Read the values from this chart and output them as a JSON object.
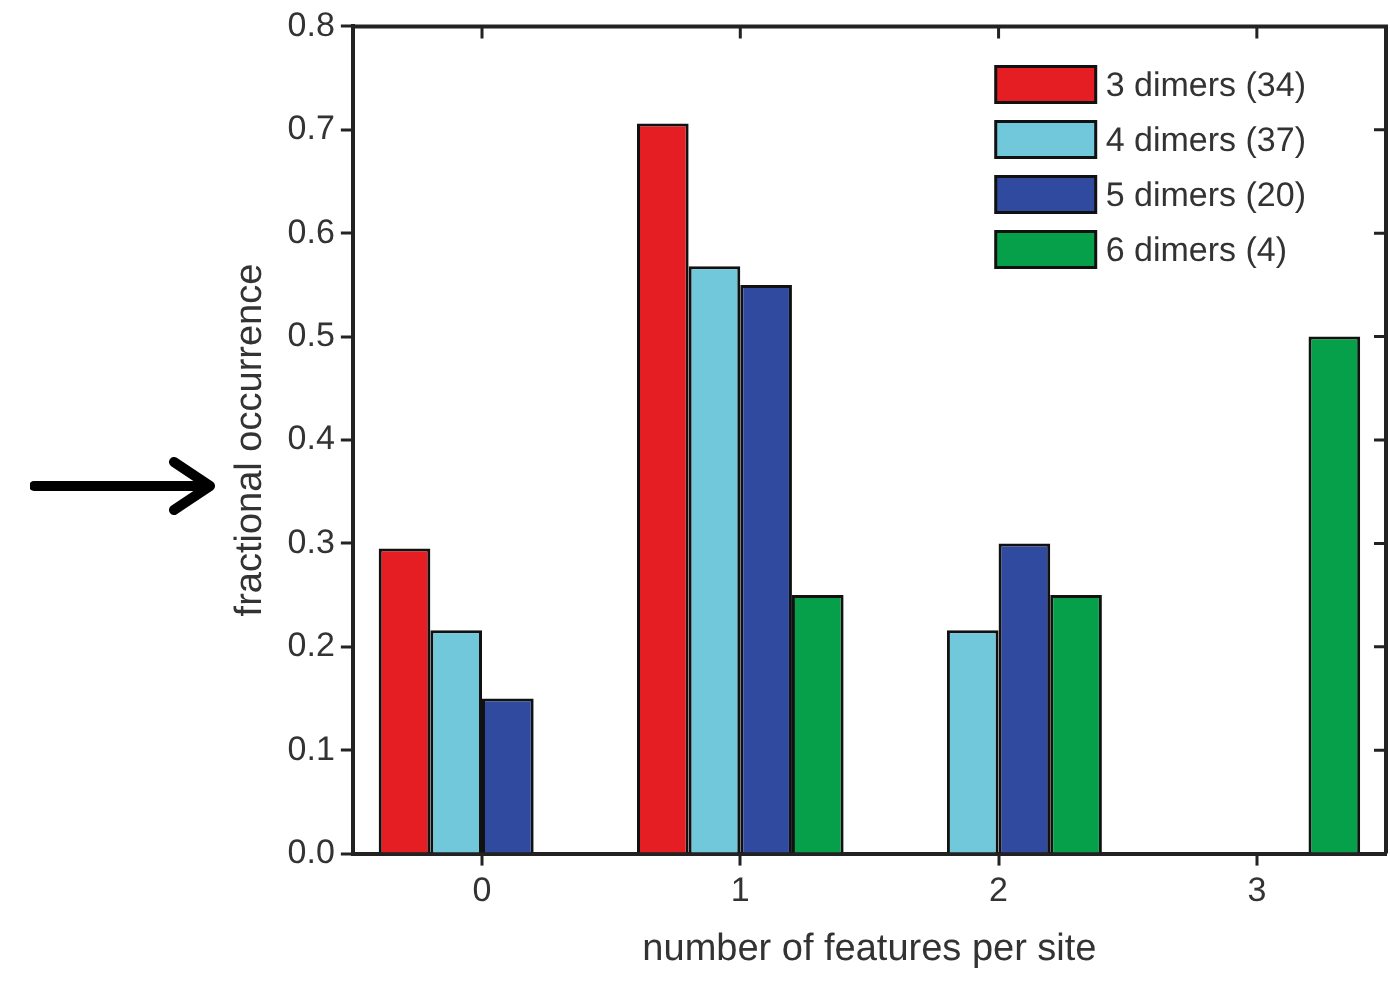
{
  "chart_data": {
    "type": "bar",
    "xlabel": "number of features per site",
    "ylabel": "fractional occurrence",
    "categories": [
      "0",
      "1",
      "2",
      "3"
    ],
    "series": [
      {
        "name": "3 dimers (34)",
        "color": "#e51e24",
        "values": [
          0.295,
          0.706,
          null,
          null
        ]
      },
      {
        "name": "4 dimers (37)",
        "color": "#70c8da",
        "values": [
          0.216,
          0.568,
          0.216,
          null
        ]
      },
      {
        "name": "5 dimers (20)",
        "color": "#2f4a9e",
        "values": [
          0.15,
          0.55,
          0.3,
          null
        ]
      },
      {
        "name": "6 dimers (4)",
        "color": "#06a04a",
        "values": [
          null,
          0.25,
          0.25,
          0.5
        ]
      }
    ],
    "ylim": [
      0,
      0.8
    ],
    "yticks": [
      {
        "value": 0,
        "label": "0.0"
      },
      {
        "value": 0.1,
        "label": "0.1"
      },
      {
        "value": 0.2,
        "label": "0.2"
      },
      {
        "value": 0.3,
        "label": "0.3"
      },
      {
        "value": 0.4,
        "label": "0.4"
      },
      {
        "value": 0.5,
        "label": "0.5"
      },
      {
        "value": 0.6,
        "label": "0.6"
      },
      {
        "value": 0.7,
        "label": "0.7"
      },
      {
        "value": 0.8,
        "label": "0.8"
      }
    ],
    "grid": false,
    "legend": "top right"
  }
}
